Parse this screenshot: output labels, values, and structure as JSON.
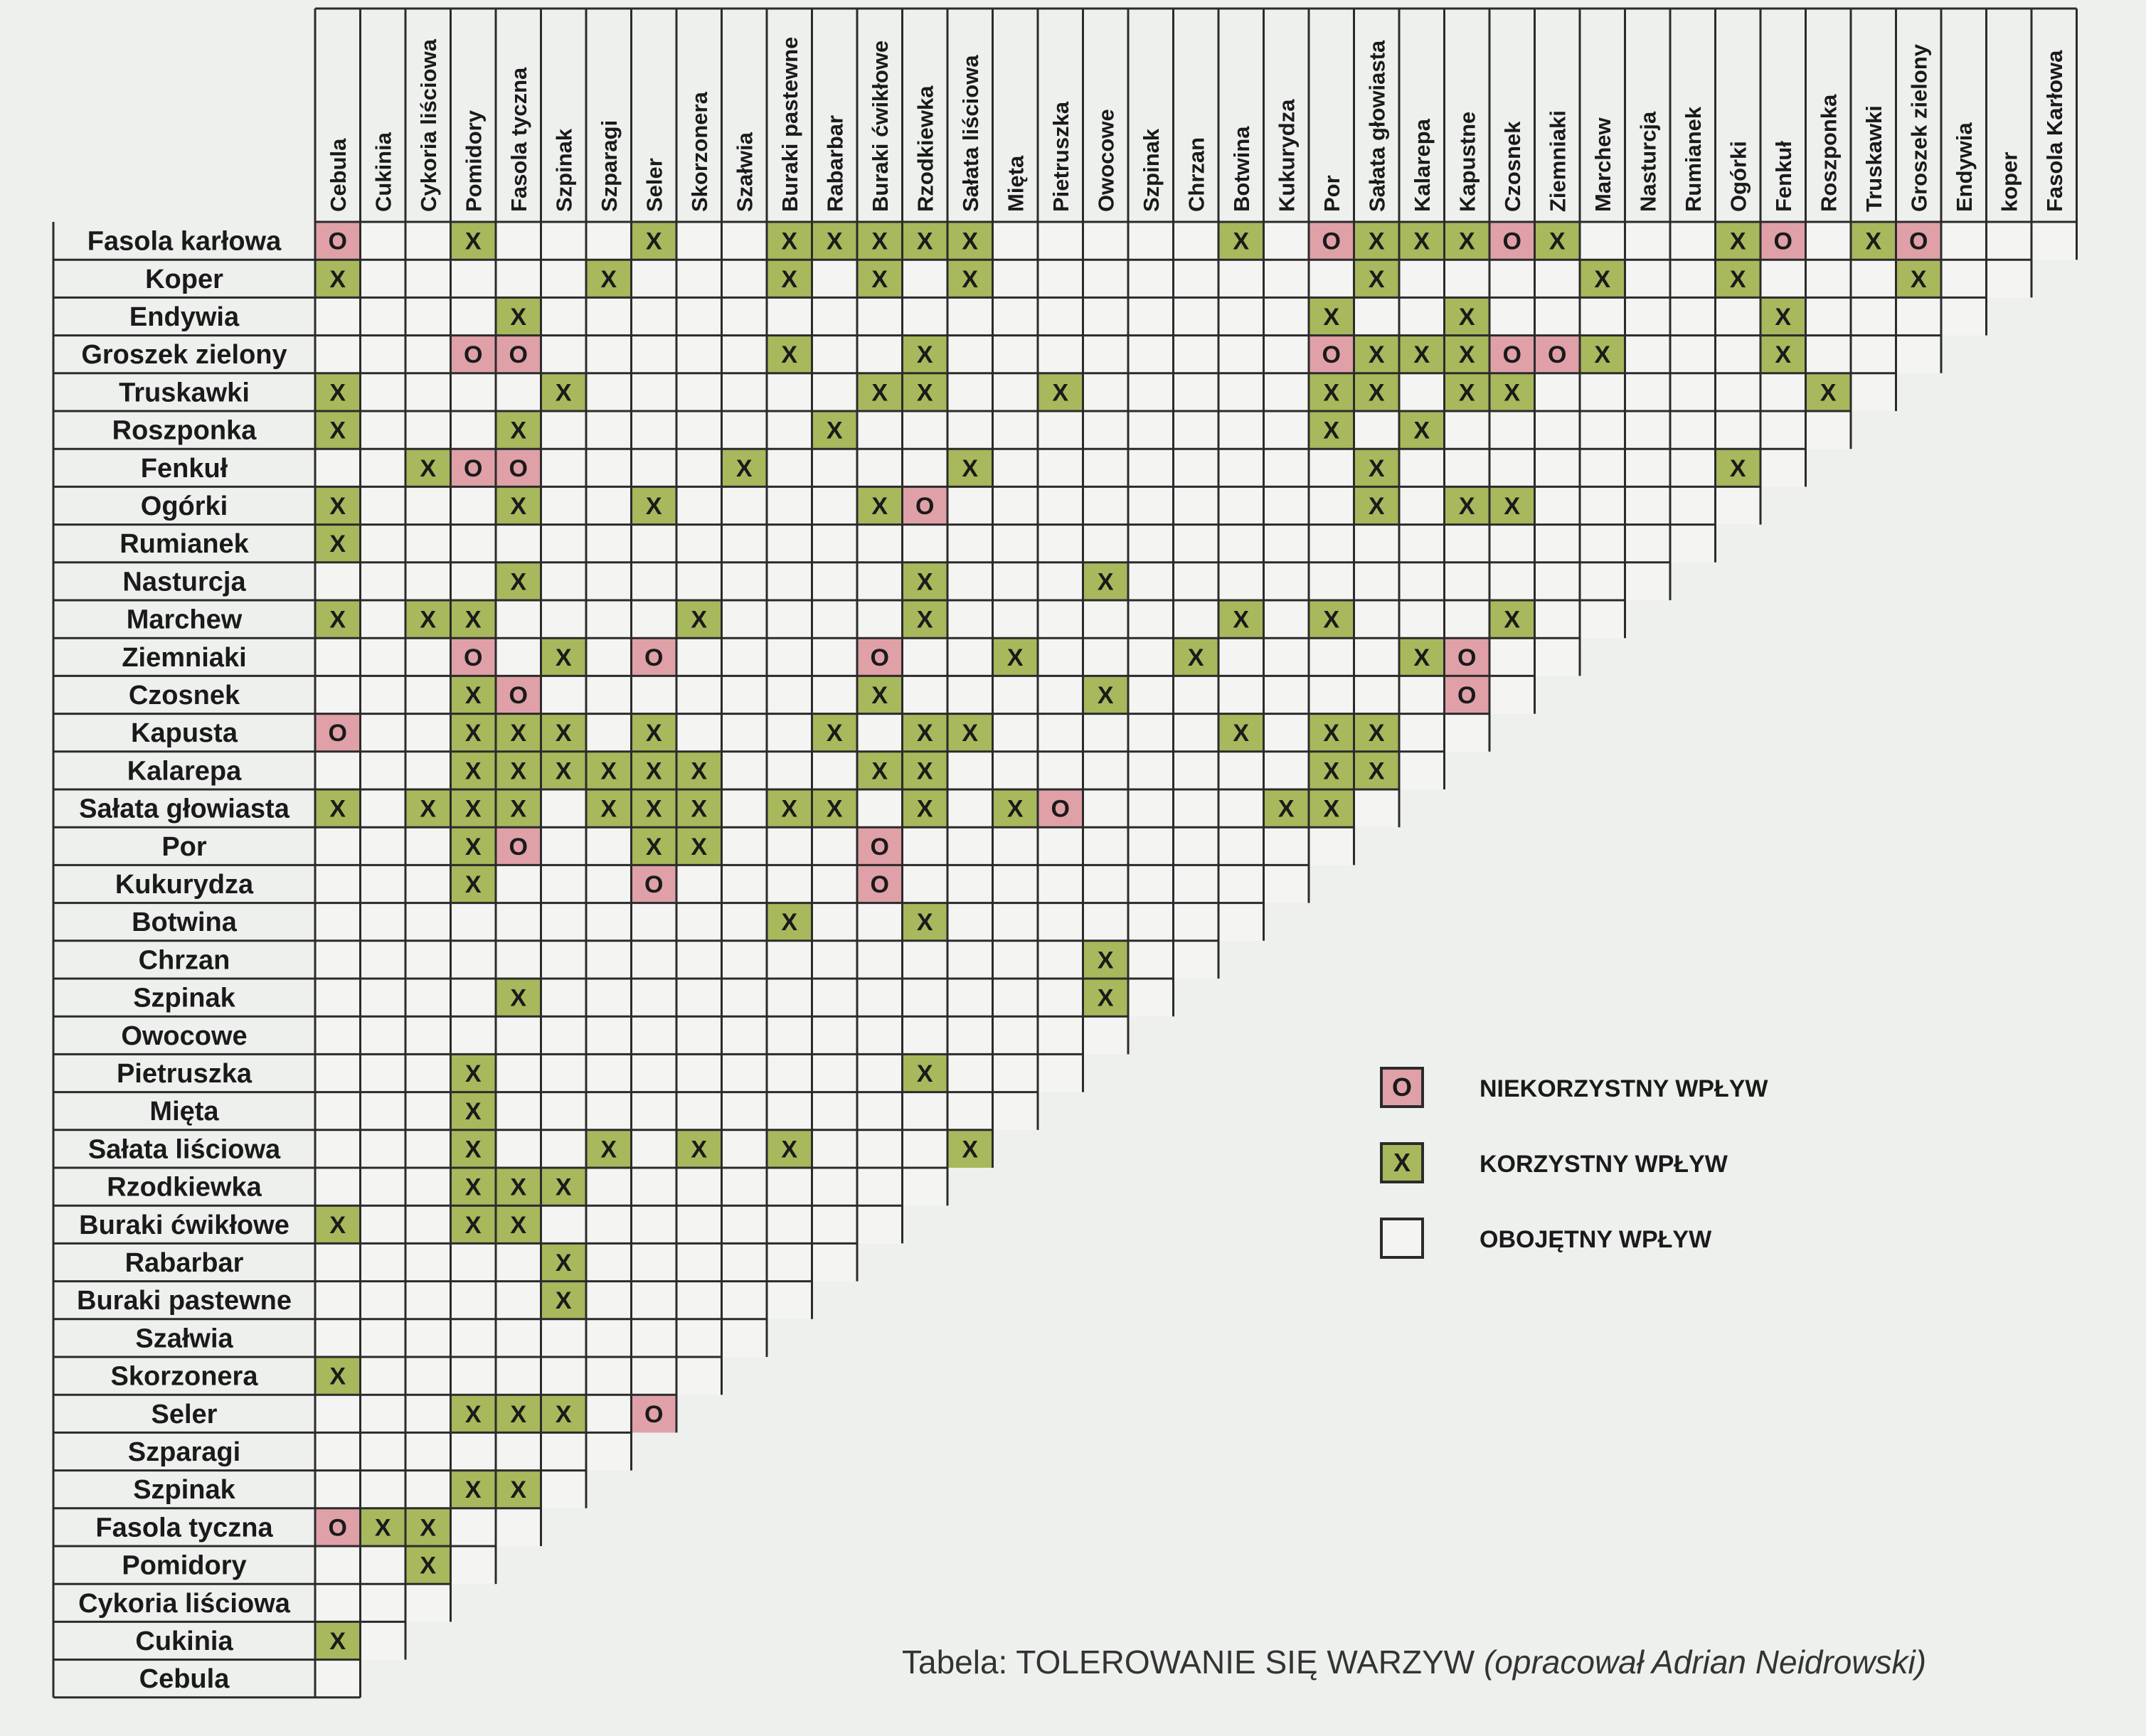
{
  "colors": {
    "unfavorable_bg": "#e0a0a8",
    "favorable_bg": "#a8b85c",
    "neutral_bg": "#f4f5f3",
    "grid_line": "#2b2b2b"
  },
  "columns": [
    "Cebula",
    "Cukinia",
    "Cykoria liściowa",
    "Pomidory",
    "Fasola tyczna",
    "Szpinak",
    "Szparagi",
    "Seler",
    "Skorzonera",
    "Szałwia",
    "Buraki pastewne",
    "Rabarbar",
    "Buraki ćwikłowe",
    "Rzodkiewka",
    "Sałata liściowa",
    "Mięta",
    "Pietruszka",
    "Owocowe",
    "Szpinak",
    "Chrzan",
    "Botwina",
    "Kukurydza",
    "Por",
    "Sałata głowiasta",
    "Kalarepa",
    "Kapustne",
    "Czosnek",
    "Ziemniaki",
    "Marchew",
    "Nasturcja",
    "Rumianek",
    "Ogórki",
    "Fenkuł",
    "Roszponka",
    "Truskawki",
    "Groszek zielony",
    "Endywia",
    "koper",
    "Fasola Karłowa"
  ],
  "rows": [
    "Fasola karłowa",
    "Koper",
    "Endywia",
    "Groszek zielony",
    "Truskawki",
    "Roszponka",
    "Fenkuł",
    "Ogórki",
    "Rumianek",
    "Nasturcja",
    "Marchew",
    "Ziemniaki",
    "Czosnek",
    "Kapusta",
    "Kalarepa",
    "Sałata głowiasta",
    "Por",
    "Kukurydza",
    "Botwina",
    "Chrzan",
    "Szpinak",
    "Owocowe",
    "Pietruszka",
    "Mięta",
    "Sałata liściowa",
    "Rzodkiewka",
    "Buraki ćwikłowe",
    "Rabarbar",
    "Buraki pastewne",
    "Szałwia",
    "Skorzonera",
    "Seler",
    "Szparagi",
    "Szpinak",
    "Fasola tyczna",
    "Pomidory",
    "Cykoria liściowa",
    "Cukinia",
    "Cebula"
  ],
  "marks": [
    {
      "r": 0,
      "c": 0,
      "v": "O"
    },
    {
      "r": 0,
      "c": 3,
      "v": "X"
    },
    {
      "r": 0,
      "c": 7,
      "v": "X"
    },
    {
      "r": 0,
      "c": 10,
      "v": "X"
    },
    {
      "r": 0,
      "c": 11,
      "v": "X"
    },
    {
      "r": 0,
      "c": 12,
      "v": "X"
    },
    {
      "r": 0,
      "c": 13,
      "v": "X"
    },
    {
      "r": 0,
      "c": 14,
      "v": "X"
    },
    {
      "r": 0,
      "c": 20,
      "v": "X"
    },
    {
      "r": 0,
      "c": 22,
      "v": "O"
    },
    {
      "r": 0,
      "c": 23,
      "v": "X"
    },
    {
      "r": 0,
      "c": 24,
      "v": "X"
    },
    {
      "r": 0,
      "c": 25,
      "v": "X"
    },
    {
      "r": 0,
      "c": 26,
      "v": "O"
    },
    {
      "r": 0,
      "c": 27,
      "v": "X"
    },
    {
      "r": 0,
      "c": 31,
      "v": "X"
    },
    {
      "r": 0,
      "c": 32,
      "v": "O"
    },
    {
      "r": 0,
      "c": 34,
      "v": "X"
    },
    {
      "r": 0,
      "c": 35,
      "v": "O"
    },
    {
      "r": 1,
      "c": 0,
      "v": "X"
    },
    {
      "r": 1,
      "c": 6,
      "v": "X"
    },
    {
      "r": 1,
      "c": 10,
      "v": "X"
    },
    {
      "r": 1,
      "c": 12,
      "v": "X"
    },
    {
      "r": 1,
      "c": 14,
      "v": "X"
    },
    {
      "r": 1,
      "c": 23,
      "v": "X"
    },
    {
      "r": 1,
      "c": 28,
      "v": "X"
    },
    {
      "r": 1,
      "c": 31,
      "v": "X"
    },
    {
      "r": 1,
      "c": 35,
      "v": "X"
    },
    {
      "r": 2,
      "c": 4,
      "v": "X"
    },
    {
      "r": 2,
      "c": 22,
      "v": "X"
    },
    {
      "r": 2,
      "c": 25,
      "v": "X"
    },
    {
      "r": 2,
      "c": 32,
      "v": "X"
    },
    {
      "r": 3,
      "c": 3,
      "v": "O"
    },
    {
      "r": 3,
      "c": 4,
      "v": "O"
    },
    {
      "r": 3,
      "c": 10,
      "v": "X"
    },
    {
      "r": 3,
      "c": 13,
      "v": "X"
    },
    {
      "r": 3,
      "c": 22,
      "v": "O"
    },
    {
      "r": 3,
      "c": 23,
      "v": "X"
    },
    {
      "r": 3,
      "c": 24,
      "v": "X"
    },
    {
      "r": 3,
      "c": 25,
      "v": "X"
    },
    {
      "r": 3,
      "c": 26,
      "v": "O"
    },
    {
      "r": 3,
      "c": 27,
      "v": "O"
    },
    {
      "r": 3,
      "c": 28,
      "v": "X"
    },
    {
      "r": 3,
      "c": 32,
      "v": "X"
    },
    {
      "r": 4,
      "c": 0,
      "v": "X"
    },
    {
      "r": 4,
      "c": 5,
      "v": "X"
    },
    {
      "r": 4,
      "c": 12,
      "v": "X"
    },
    {
      "r": 4,
      "c": 13,
      "v": "X"
    },
    {
      "r": 4,
      "c": 16,
      "v": "X"
    },
    {
      "r": 4,
      "c": 22,
      "v": "X"
    },
    {
      "r": 4,
      "c": 23,
      "v": "X"
    },
    {
      "r": 4,
      "c": 25,
      "v": "X"
    },
    {
      "r": 4,
      "c": 26,
      "v": "X"
    },
    {
      "r": 4,
      "c": 33,
      "v": "X"
    },
    {
      "r": 5,
      "c": 0,
      "v": "X"
    },
    {
      "r": 5,
      "c": 4,
      "v": "X"
    },
    {
      "r": 5,
      "c": 11,
      "v": "X"
    },
    {
      "r": 5,
      "c": 22,
      "v": "X"
    },
    {
      "r": 5,
      "c": 24,
      "v": "X"
    },
    {
      "r": 6,
      "c": 2,
      "v": "X"
    },
    {
      "r": 6,
      "c": 3,
      "v": "O"
    },
    {
      "r": 6,
      "c": 4,
      "v": "O"
    },
    {
      "r": 6,
      "c": 9,
      "v": "X"
    },
    {
      "r": 6,
      "c": 14,
      "v": "X"
    },
    {
      "r": 6,
      "c": 23,
      "v": "X"
    },
    {
      "r": 6,
      "c": 31,
      "v": "X"
    },
    {
      "r": 7,
      "c": 0,
      "v": "X"
    },
    {
      "r": 7,
      "c": 4,
      "v": "X"
    },
    {
      "r": 7,
      "c": 7,
      "v": "X"
    },
    {
      "r": 7,
      "c": 12,
      "v": "X"
    },
    {
      "r": 7,
      "c": 13,
      "v": "O"
    },
    {
      "r": 7,
      "c": 23,
      "v": "X"
    },
    {
      "r": 7,
      "c": 25,
      "v": "X"
    },
    {
      "r": 7,
      "c": 26,
      "v": "X"
    },
    {
      "r": 8,
      "c": 0,
      "v": "X"
    },
    {
      "r": 9,
      "c": 4,
      "v": "X"
    },
    {
      "r": 9,
      "c": 13,
      "v": "X"
    },
    {
      "r": 9,
      "c": 17,
      "v": "X"
    },
    {
      "r": 10,
      "c": 0,
      "v": "X"
    },
    {
      "r": 10,
      "c": 2,
      "v": "X"
    },
    {
      "r": 10,
      "c": 3,
      "v": "X"
    },
    {
      "r": 10,
      "c": 8,
      "v": "X"
    },
    {
      "r": 10,
      "c": 13,
      "v": "X"
    },
    {
      "r": 10,
      "c": 20,
      "v": "X"
    },
    {
      "r": 10,
      "c": 22,
      "v": "X"
    },
    {
      "r": 10,
      "c": 26,
      "v": "X"
    },
    {
      "r": 11,
      "c": 3,
      "v": "O"
    },
    {
      "r": 11,
      "c": 5,
      "v": "X"
    },
    {
      "r": 11,
      "c": 7,
      "v": "O"
    },
    {
      "r": 11,
      "c": 12,
      "v": "O"
    },
    {
      "r": 11,
      "c": 15,
      "v": "X"
    },
    {
      "r": 11,
      "c": 19,
      "v": "X"
    },
    {
      "r": 11,
      "c": 24,
      "v": "X"
    },
    {
      "r": 11,
      "c": 25,
      "v": "O"
    },
    {
      "r": 12,
      "c": 3,
      "v": "X"
    },
    {
      "r": 12,
      "c": 4,
      "v": "O"
    },
    {
      "r": 12,
      "c": 12,
      "v": "X"
    },
    {
      "r": 12,
      "c": 17,
      "v": "X"
    },
    {
      "r": 12,
      "c": 25,
      "v": "O"
    },
    {
      "r": 13,
      "c": 0,
      "v": "O"
    },
    {
      "r": 13,
      "c": 3,
      "v": "X"
    },
    {
      "r": 13,
      "c": 4,
      "v": "X"
    },
    {
      "r": 13,
      "c": 5,
      "v": "X"
    },
    {
      "r": 13,
      "c": 7,
      "v": "X"
    },
    {
      "r": 13,
      "c": 11,
      "v": "X"
    },
    {
      "r": 13,
      "c": 13,
      "v": "X"
    },
    {
      "r": 13,
      "c": 14,
      "v": "X"
    },
    {
      "r": 13,
      "c": 20,
      "v": "X"
    },
    {
      "r": 13,
      "c": 22,
      "v": "X"
    },
    {
      "r": 13,
      "c": 23,
      "v": "X"
    },
    {
      "r": 14,
      "c": 3,
      "v": "X"
    },
    {
      "r": 14,
      "c": 4,
      "v": "X"
    },
    {
      "r": 14,
      "c": 5,
      "v": "X"
    },
    {
      "r": 14,
      "c": 6,
      "v": "X"
    },
    {
      "r": 14,
      "c": 7,
      "v": "X"
    },
    {
      "r": 14,
      "c": 8,
      "v": "X"
    },
    {
      "r": 14,
      "c": 12,
      "v": "X"
    },
    {
      "r": 14,
      "c": 13,
      "v": "X"
    },
    {
      "r": 14,
      "c": 22,
      "v": "X"
    },
    {
      "r": 14,
      "c": 23,
      "v": "X"
    },
    {
      "r": 15,
      "c": 0,
      "v": "X"
    },
    {
      "r": 15,
      "c": 2,
      "v": "X"
    },
    {
      "r": 15,
      "c": 3,
      "v": "X"
    },
    {
      "r": 15,
      "c": 4,
      "v": "X"
    },
    {
      "r": 15,
      "c": 6,
      "v": "X"
    },
    {
      "r": 15,
      "c": 7,
      "v": "X"
    },
    {
      "r": 15,
      "c": 8,
      "v": "X"
    },
    {
      "r": 15,
      "c": 10,
      "v": "X"
    },
    {
      "r": 15,
      "c": 11,
      "v": "X"
    },
    {
      "r": 15,
      "c": 13,
      "v": "X"
    },
    {
      "r": 15,
      "c": 15,
      "v": "X"
    },
    {
      "r": 15,
      "c": 16,
      "v": "O"
    },
    {
      "r": 15,
      "c": 21,
      "v": "X"
    },
    {
      "r": 15,
      "c": 22,
      "v": "X"
    },
    {
      "r": 16,
      "c": 3,
      "v": "X"
    },
    {
      "r": 16,
      "c": 4,
      "v": "O"
    },
    {
      "r": 16,
      "c": 7,
      "v": "X"
    },
    {
      "r": 16,
      "c": 8,
      "v": "X"
    },
    {
      "r": 16,
      "c": 12,
      "v": "O"
    },
    {
      "r": 17,
      "c": 3,
      "v": "X"
    },
    {
      "r": 17,
      "c": 7,
      "v": "O"
    },
    {
      "r": 17,
      "c": 12,
      "v": "O"
    },
    {
      "r": 18,
      "c": 10,
      "v": "X"
    },
    {
      "r": 18,
      "c": 13,
      "v": "X"
    },
    {
      "r": 19,
      "c": 17,
      "v": "X"
    },
    {
      "r": 20,
      "c": 4,
      "v": "X"
    },
    {
      "r": 20,
      "c": 17,
      "v": "X"
    },
    {
      "r": 22,
      "c": 3,
      "v": "X"
    },
    {
      "r": 22,
      "c": 13,
      "v": "X"
    },
    {
      "r": 23,
      "c": 3,
      "v": "X"
    },
    {
      "r": 24,
      "c": 3,
      "v": "X"
    },
    {
      "r": 24,
      "c": 6,
      "v": "X"
    },
    {
      "r": 24,
      "c": 8,
      "v": "X"
    },
    {
      "r": 24,
      "c": 10,
      "v": "X"
    },
    {
      "r": 24,
      "c": 14,
      "v": "X"
    },
    {
      "r": 25,
      "c": 3,
      "v": "X"
    },
    {
      "r": 25,
      "c": 4,
      "v": "X"
    },
    {
      "r": 25,
      "c": 5,
      "v": "X"
    },
    {
      "r": 26,
      "c": 0,
      "v": "X"
    },
    {
      "r": 26,
      "c": 3,
      "v": "X"
    },
    {
      "r": 26,
      "c": 4,
      "v": "X"
    },
    {
      "r": 27,
      "c": 5,
      "v": "X"
    },
    {
      "r": 28,
      "c": 5,
      "v": "X"
    },
    {
      "r": 30,
      "c": 0,
      "v": "X"
    },
    {
      "r": 31,
      "c": 3,
      "v": "X"
    },
    {
      "r": 31,
      "c": 4,
      "v": "X"
    },
    {
      "r": 31,
      "c": 5,
      "v": "X"
    },
    {
      "r": 31,
      "c": 7,
      "v": "O"
    },
    {
      "r": 33,
      "c": 3,
      "v": "X"
    },
    {
      "r": 33,
      "c": 4,
      "v": "X"
    },
    {
      "r": 34,
      "c": 0,
      "v": "O"
    },
    {
      "r": 34,
      "c": 1,
      "v": "X"
    },
    {
      "r": 34,
      "c": 2,
      "v": "X"
    },
    {
      "r": 35,
      "c": 2,
      "v": "X"
    },
    {
      "r": 37,
      "c": 0,
      "v": "X"
    }
  ],
  "legend": {
    "unfavorable": {
      "symbol": "O",
      "label": "NIEKORZYSTNY WPŁYW"
    },
    "favorable": {
      "symbol": "X",
      "label": "KORZYSTNY WPŁYW"
    },
    "neutral": {
      "symbol": "",
      "label": "OBOJĘTNY WPŁYW"
    }
  },
  "caption": {
    "main": "Tabela: TOLEROWANIE SIĘ WARZYW",
    "author": "(opracował Adrian Neidrowski)"
  }
}
